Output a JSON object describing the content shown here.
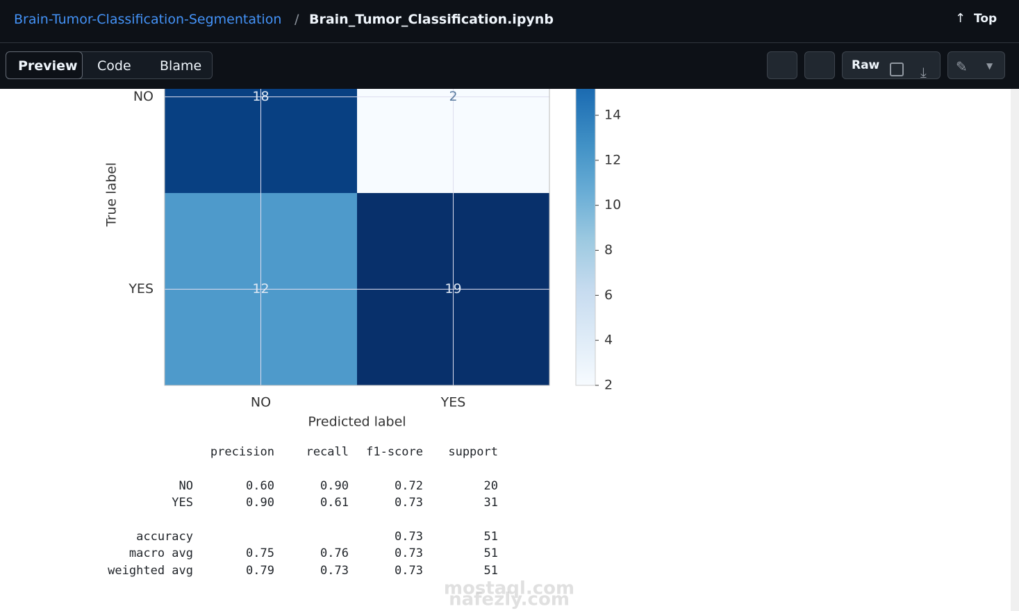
{
  "header": {
    "repo": "Brain-Tumor-Classification-Segmentation",
    "separator": "/",
    "file": "Brain_Tumor_Classification.ipynb",
    "top": "Top"
  },
  "toolbar": {
    "tabs": [
      "Preview",
      "Code",
      "Blame"
    ],
    "raw": "Raw"
  },
  "confusion_matrix": {
    "type": "heatmap",
    "rows": [
      "NO",
      "YES"
    ],
    "columns": [
      "NO",
      "YES"
    ],
    "values": [
      [
        18,
        2
      ],
      [
        12,
        19
      ]
    ],
    "xlabel": "Predicted label",
    "ylabel": "True label",
    "colormap": "Blues",
    "clim": [
      2,
      19
    ],
    "cticks": [
      2,
      4,
      6,
      8,
      10,
      12,
      14
    ],
    "grid": true
  },
  "report": {
    "columns": [
      "precision",
      "recall",
      "f1-score",
      "support"
    ],
    "rows": [
      [
        "NO",
        "0.60",
        "0.90",
        "0.72",
        "20"
      ],
      [
        "YES",
        "0.90",
        "0.61",
        "0.73",
        "31"
      ],
      [
        "accuracy",
        null,
        null,
        "0.73",
        "51"
      ],
      [
        "macro avg",
        "0.75",
        "0.76",
        "0.73",
        "51"
      ],
      [
        "weighted avg",
        "0.79",
        "0.73",
        "0.73",
        "51"
      ]
    ]
  },
  "watermark": [
    "mostaql.com",
    "nafezly.com"
  ]
}
